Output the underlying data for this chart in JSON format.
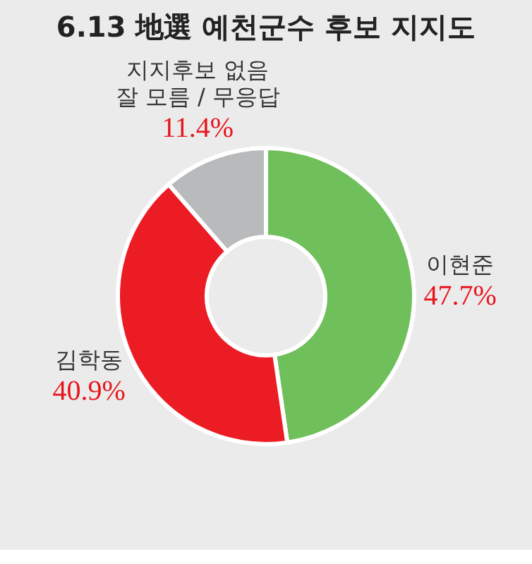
{
  "chart_data": {
    "type": "donut",
    "title": "6.13 地選 예천군수 후보 지지도",
    "categories": [
      "이현준",
      "김학동",
      "지지후보 없음\n잘 모름 / 무응답"
    ],
    "values": [
      47.7,
      40.9,
      11.4
    ],
    "colors": [
      "#6fbf5a",
      "#ec1c24",
      "#b9babc"
    ],
    "value_labels": [
      "47.7%",
      "40.9%",
      "11.4%"
    ],
    "legend": false
  }
}
